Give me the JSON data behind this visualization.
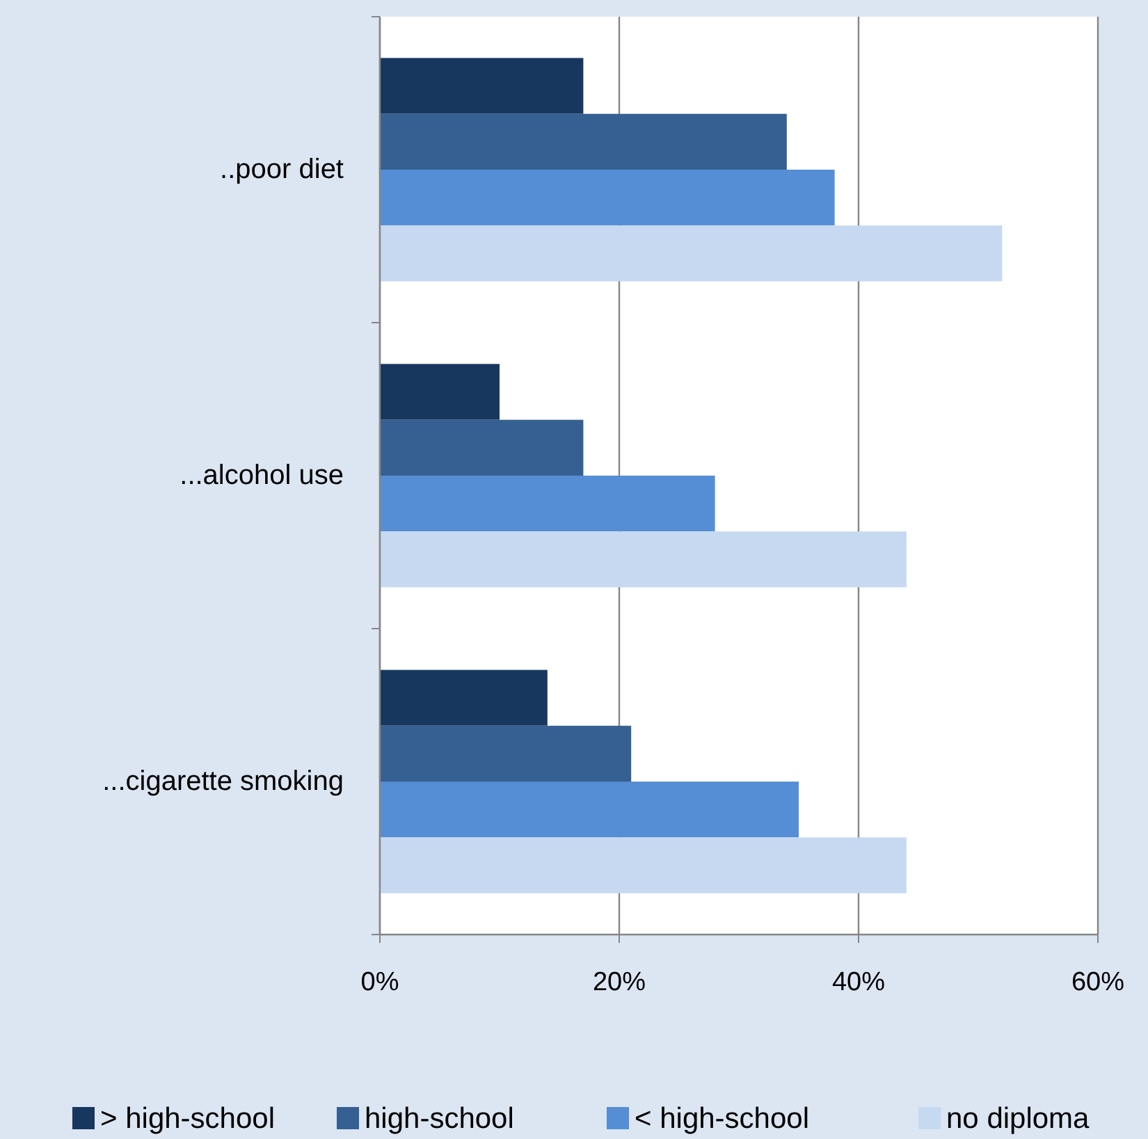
{
  "chart_data": {
    "type": "bar",
    "orientation": "horizontal",
    "categories": [
      "..poor diet",
      "...alcohol use",
      "...cigarette smoking"
    ],
    "series": [
      {
        "name": "> high-school",
        "color": "#17375e",
        "values": [
          17,
          10,
          14
        ]
      },
      {
        "name": "high-school",
        "color": "#366092",
        "values": [
          34,
          17,
          21
        ]
      },
      {
        "name": "< high-school",
        "color": "#558ed5",
        "values": [
          38,
          28,
          35
        ]
      },
      {
        "name": "no diploma",
        "color": "#c6d9f1",
        "values": [
          52,
          44,
          44
        ]
      }
    ],
    "xlim": [
      0,
      60
    ],
    "xticks": [
      {
        "value": 0,
        "label": "0%"
      },
      {
        "value": 20,
        "label": "20%"
      },
      {
        "value": 40,
        "label": "40%"
      },
      {
        "value": 60,
        "label": "60%"
      }
    ],
    "grid": "x",
    "legend": "bottom"
  }
}
